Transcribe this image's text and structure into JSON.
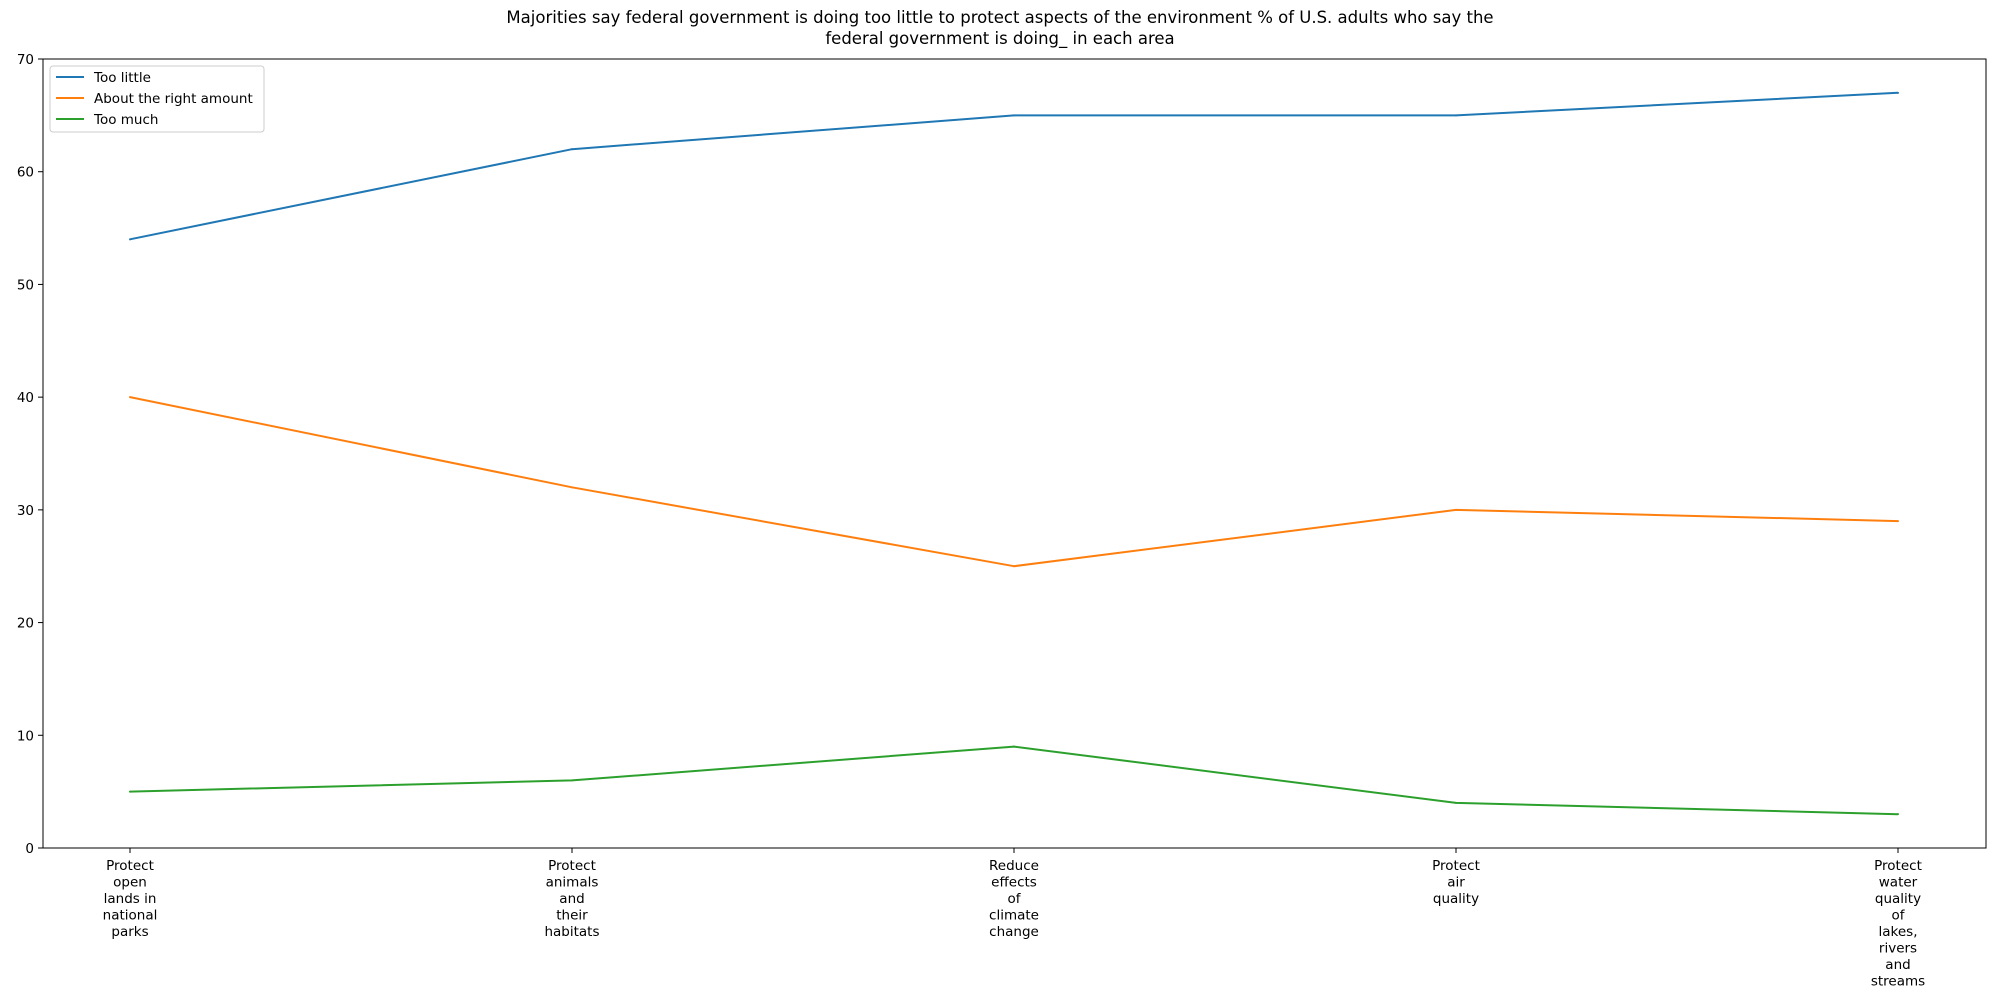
{
  "chart_data": {
    "type": "line",
    "title_lines": [
      "Majorities say federal government is doing too little to protect aspects of the environment % of U.S. adults who say the",
      "federal government is doing_ in each area"
    ],
    "xlabel": "",
    "ylabel": "",
    "ylim": [
      0,
      70
    ],
    "yticks": [
      0,
      10,
      20,
      30,
      40,
      50,
      60,
      70
    ],
    "grid": false,
    "legend_position": "top-left",
    "categories": [
      [
        "Protect",
        "open",
        "lands in",
        "national",
        "parks"
      ],
      [
        "Protect",
        "animals",
        "and",
        "their",
        "habitats"
      ],
      [
        "Reduce",
        "effects",
        "of",
        "climate",
        "change"
      ],
      [
        "Protect",
        "air",
        "quality"
      ],
      [
        "Protect",
        "water",
        "quality",
        "of",
        "lakes,",
        "rivers",
        "and",
        "streams"
      ]
    ],
    "series": [
      {
        "name": "Too little",
        "color": "#1f77b4",
        "values": [
          54,
          62,
          65,
          65,
          67
        ]
      },
      {
        "name": "About the right amount",
        "color": "#ff7f0e",
        "values": [
          40,
          32,
          25,
          30,
          29
        ]
      },
      {
        "name": "Too much",
        "color": "#2ca02c",
        "values": [
          5,
          6,
          9,
          4,
          3
        ]
      }
    ]
  }
}
